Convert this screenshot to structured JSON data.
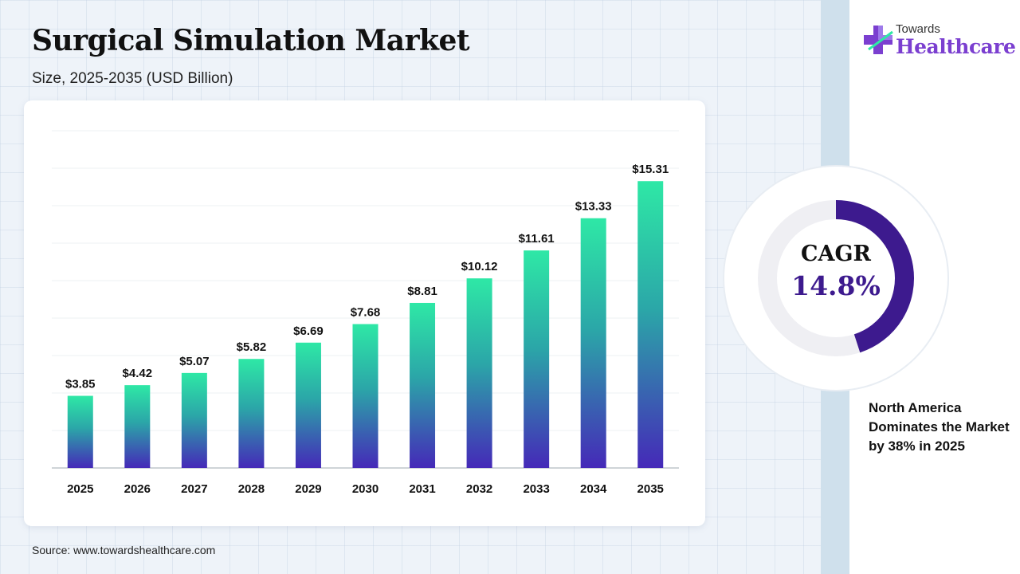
{
  "header": {
    "title": "Surgical Simulation Market",
    "subtitle": "Size, 2025-2035 (USD Billion)"
  },
  "source": "Source: www.towardshealthcare.com",
  "logo": {
    "small": "Towards",
    "big": "Healthcare"
  },
  "cagr": {
    "label": "CAGR",
    "value": "14.8%",
    "ring_fraction": 0.45
  },
  "note": "North America Dominates the Market by 38% in 2025",
  "colors": {
    "bar_top": "#2ee8a6",
    "bar_mid": "#2ba6a8",
    "bar_bottom": "#4529b8",
    "ring": "#3d1a8e",
    "ring_track": "#efeff3"
  },
  "chart_data": {
    "type": "bar",
    "categories": [
      "2025",
      "2026",
      "2027",
      "2028",
      "2029",
      "2030",
      "2031",
      "2032",
      "2033",
      "2034",
      "2035"
    ],
    "values": [
      3.85,
      4.42,
      5.07,
      5.82,
      6.69,
      7.68,
      8.81,
      10.12,
      11.61,
      13.33,
      15.31
    ],
    "value_labels": [
      "$3.85",
      "$4.42",
      "$5.07",
      "$5.82",
      "$6.69",
      "$7.68",
      "$8.81",
      "$10.12",
      "$11.61",
      "$13.33",
      "$15.31"
    ],
    "ylim": [
      0,
      18
    ],
    "grid": true,
    "xlabel": "",
    "ylabel": ""
  }
}
